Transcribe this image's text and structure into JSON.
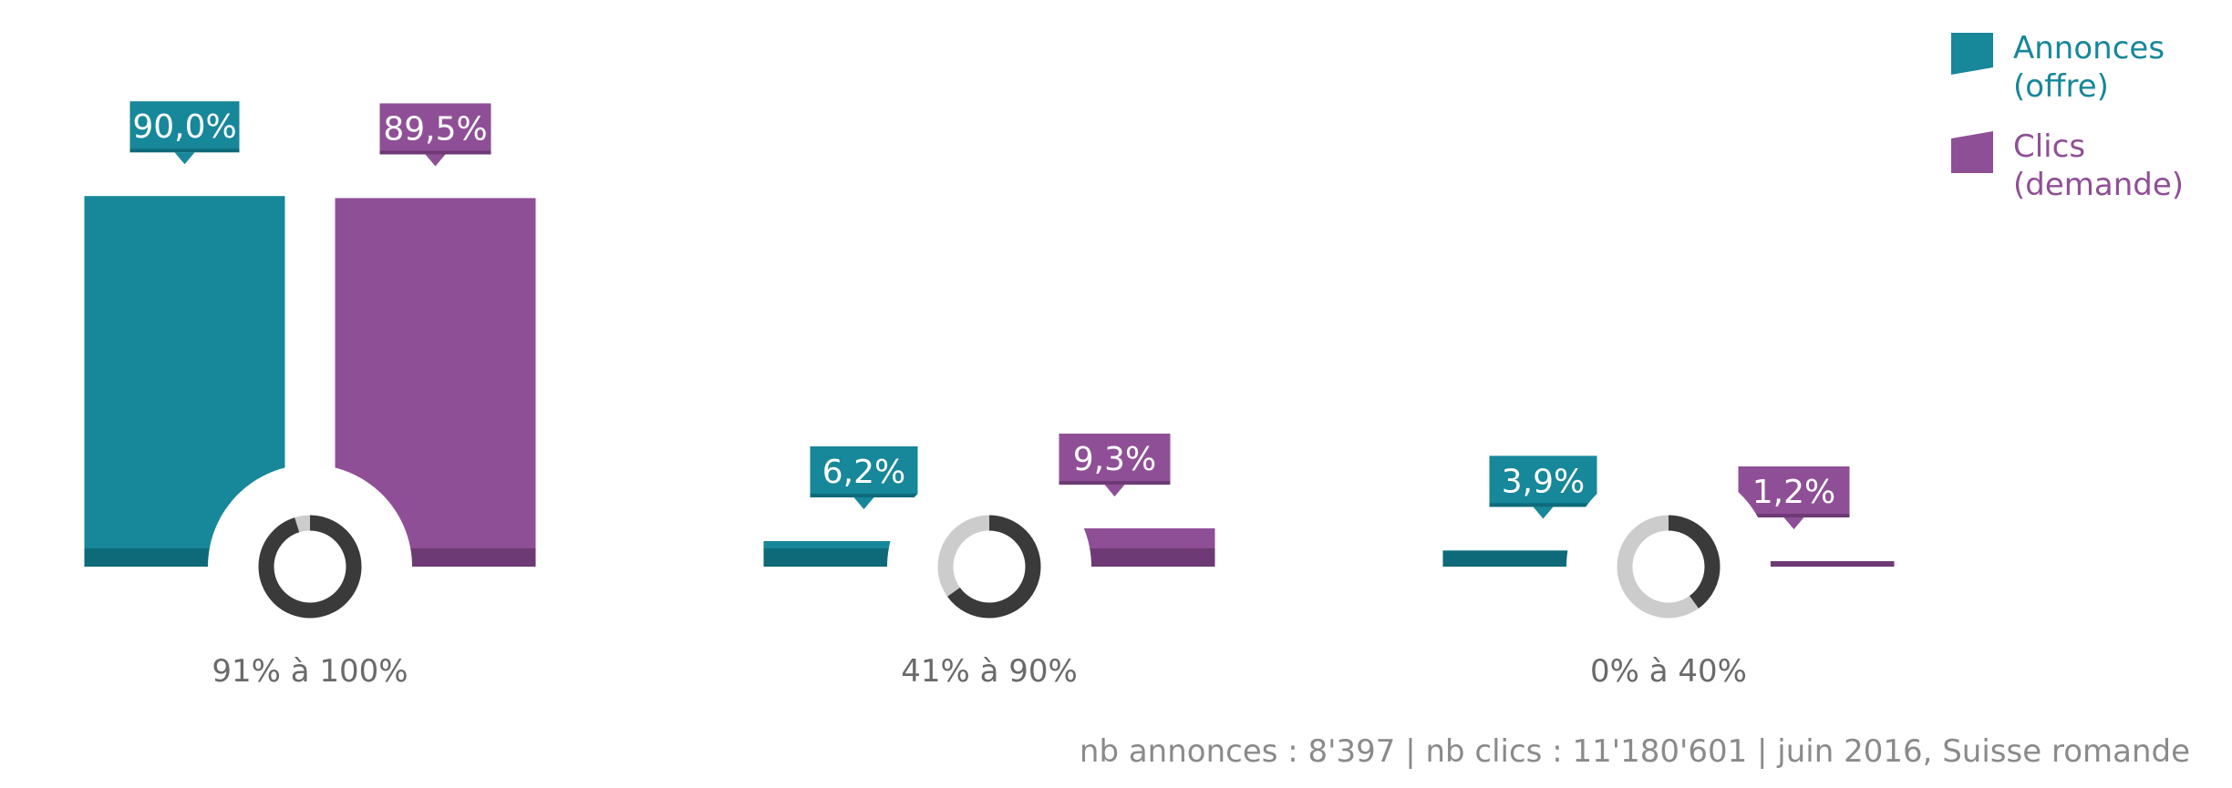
{
  "chart_data": {
    "type": "bar",
    "categories": [
      "91% à 100%",
      "41% à 90%",
      "0% à 40%"
    ],
    "series": [
      {
        "name": "Annonces (offre)",
        "values": [
          90.0,
          6.2,
          3.9
        ],
        "labels": [
          "90,0%",
          "6,2%",
          "3,9%"
        ],
        "color": "#17879a",
        "dark": "#0e6a79"
      },
      {
        "name": "Clics (demande)",
        "values": [
          89.5,
          9.3,
          1.2
        ],
        "labels": [
          "89,5%",
          "9,3%",
          "1,2%"
        ],
        "color": "#8f4f96",
        "dark": "#6e3a75"
      }
    ],
    "donut_levels": [
      0.95,
      0.65,
      0.4
    ],
    "ylim": [
      0,
      100
    ],
    "legend": {
      "position": "top-right",
      "entries": [
        {
          "line1": "Annonces",
          "line2": "(offre)"
        },
        {
          "line1": "Clics",
          "line2": "(demande)"
        }
      ]
    },
    "source_note": "nb annonces : 8'397 | nb clics : 11'180'601 | juin 2016, Suisse romande"
  }
}
